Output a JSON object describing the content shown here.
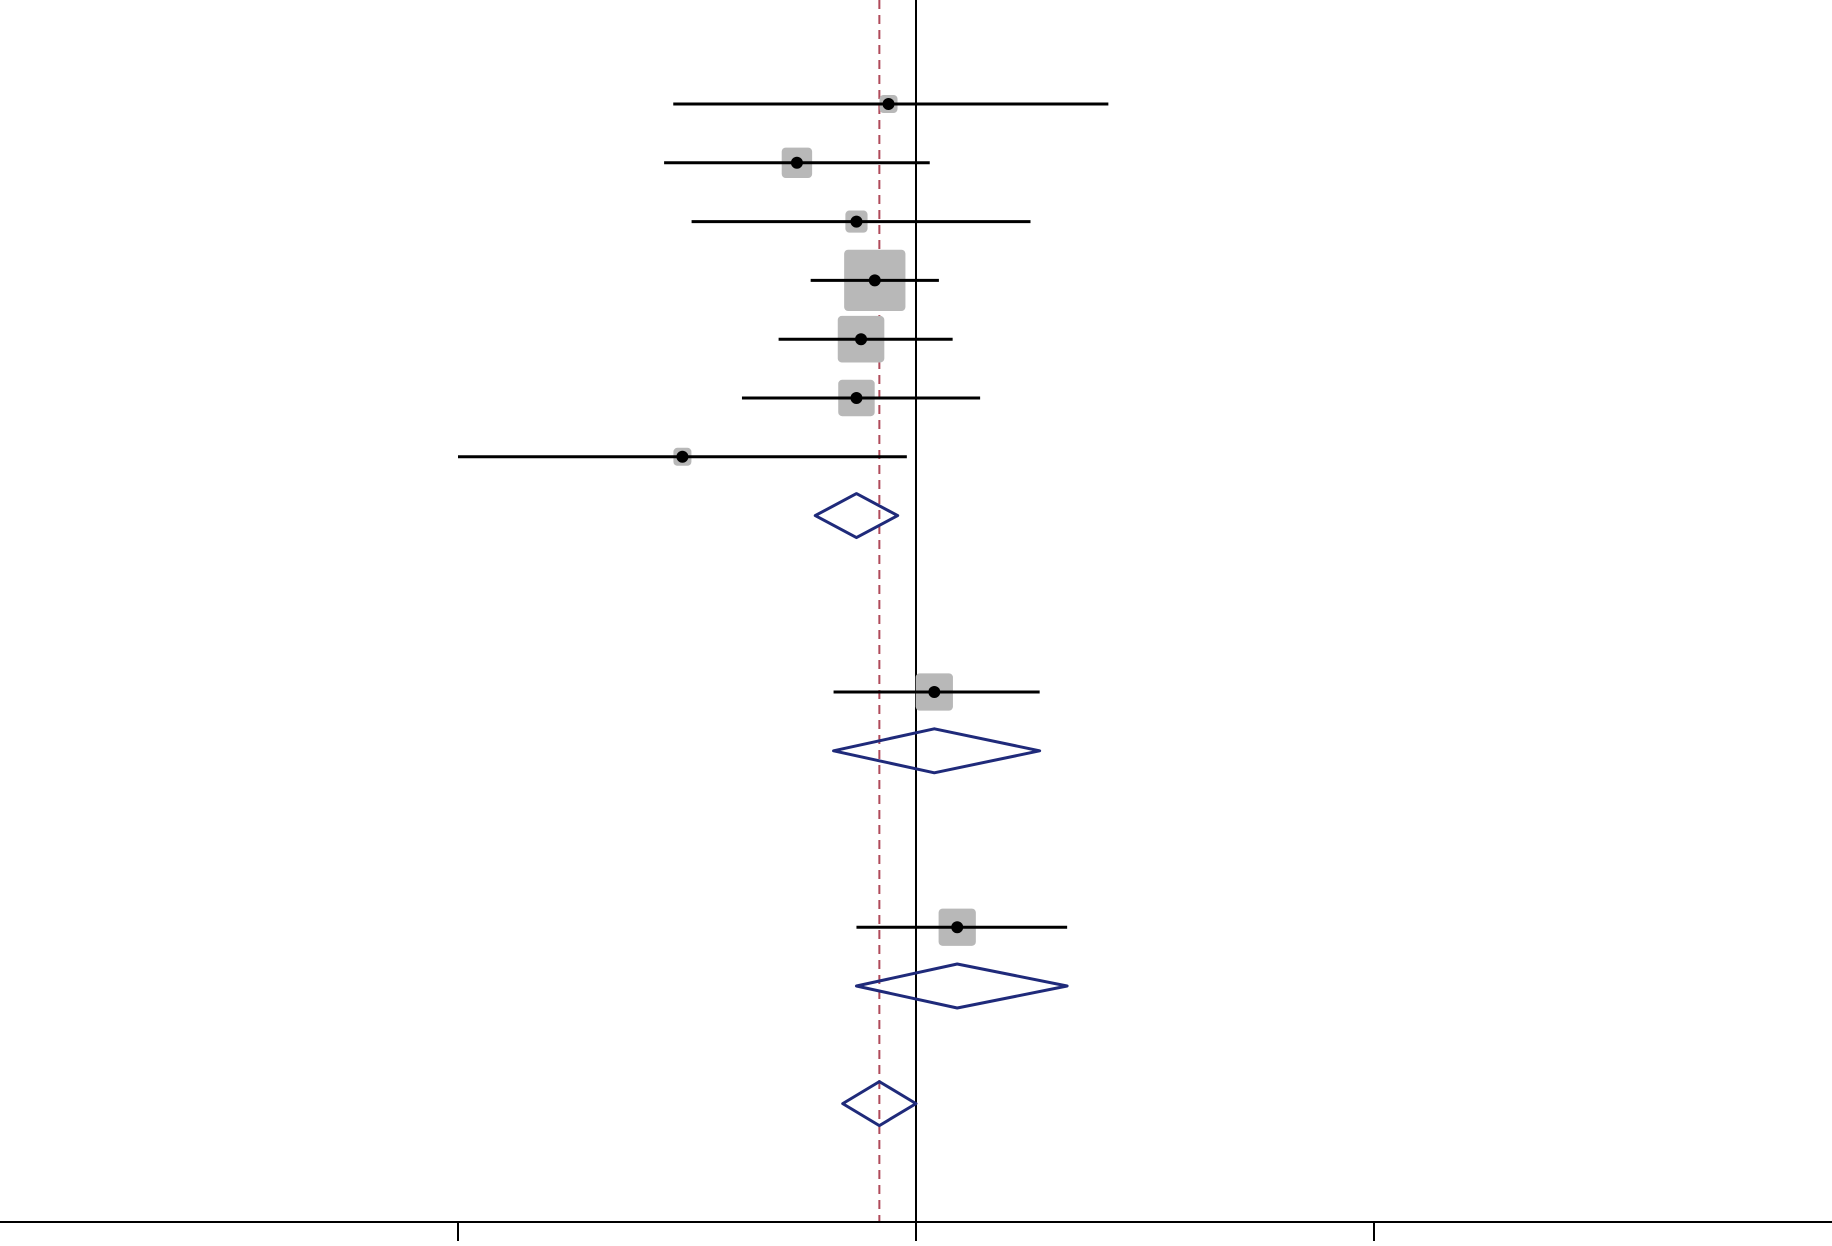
{
  "chart_data": {
    "type": "forest",
    "xlim": [
      -2,
      2
    ],
    "x_ticks": [
      -1,
      0,
      1
    ],
    "tick_labels": [],
    "null_line": 0,
    "overall_reference": -0.08,
    "title": "",
    "xlabel": "",
    "ylabel": "",
    "colors": {
      "ci_line": "#000000",
      "weight_box": "#b8b8b8",
      "diamond": "#1f2a7a",
      "reference_line": "#b04a5a",
      "axis": "#000000"
    },
    "studies": [
      {
        "row": 1,
        "estimate": -0.06,
        "lower": -0.53,
        "upper": 0.42,
        "weight": 0.9
      },
      {
        "row": 2,
        "estimate": -0.26,
        "lower": -0.55,
        "upper": 0.03,
        "weight": 3.2
      },
      {
        "row": 3,
        "estimate": -0.13,
        "lower": -0.49,
        "upper": 0.25,
        "weight": 1.7
      },
      {
        "row": 4,
        "estimate": -0.09,
        "lower": -0.23,
        "upper": 0.05,
        "weight": 13.0
      },
      {
        "row": 5,
        "estimate": -0.12,
        "lower": -0.3,
        "upper": 0.08,
        "weight": 7.5
      },
      {
        "row": 6,
        "estimate": -0.13,
        "lower": -0.38,
        "upper": 0.14,
        "weight": 4.6
      },
      {
        "row": 7,
        "estimate": -0.51,
        "lower": -1.0,
        "upper": -0.02,
        "weight": 0.8
      },
      {
        "row": 11,
        "estimate": 0.04,
        "lower": -0.18,
        "upper": 0.27,
        "weight": 4.8
      },
      {
        "row": 15,
        "estimate": 0.09,
        "lower": -0.13,
        "upper": 0.33,
        "weight": 4.8
      }
    ],
    "summaries": [
      {
        "row": 8,
        "estimate": -0.13,
        "lower": -0.22,
        "upper": -0.04
      },
      {
        "row": 12,
        "estimate": 0.04,
        "lower": -0.18,
        "upper": 0.27
      },
      {
        "row": 16,
        "estimate": 0.09,
        "lower": -0.13,
        "upper": 0.33
      },
      {
        "row": 18,
        "estimate": -0.08,
        "lower": -0.16,
        "upper": 0.0
      }
    ]
  }
}
